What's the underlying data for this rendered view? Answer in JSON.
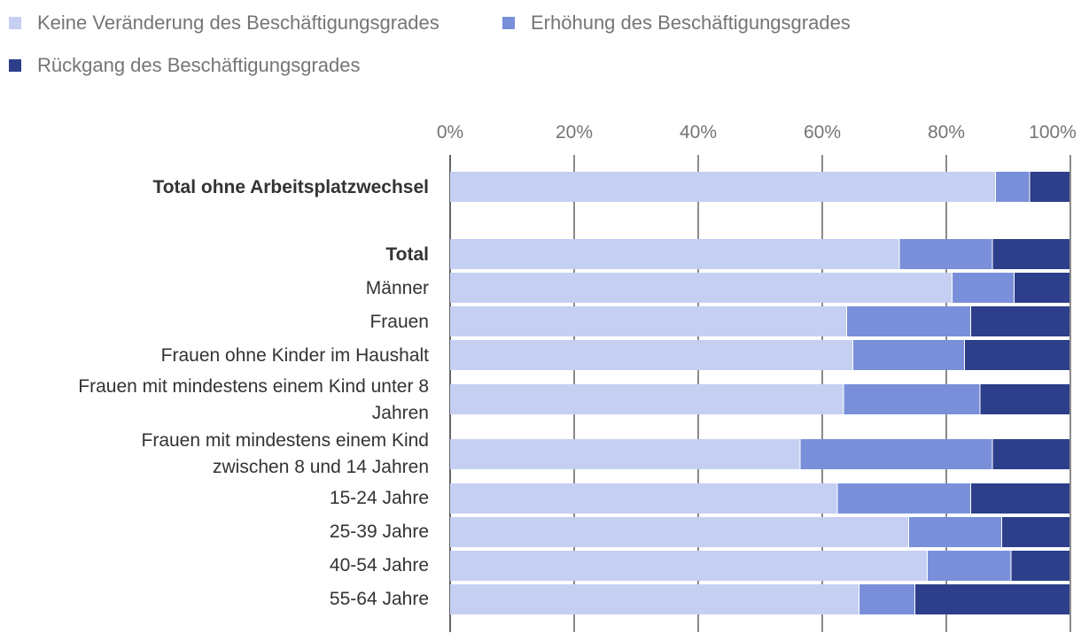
{
  "chart_data": {
    "type": "bar",
    "orientation": "horizontal",
    "stacked": true,
    "title": "",
    "xlabel": "",
    "ylabel": "",
    "xlim": [
      0,
      100
    ],
    "x_ticks": [
      "0%",
      "20%",
      "40%",
      "60%",
      "80%",
      "100%"
    ],
    "legend_position": "top-left",
    "grid": true,
    "series": [
      {
        "name": "Keine Veränderung des Beschäftigungsgrades",
        "color": "#c5cff2",
        "values": [
          88,
          72.5,
          81,
          64,
          65,
          63.5,
          56.5,
          62.5,
          74,
          77,
          66
        ]
      },
      {
        "name": "Erhöhung des Beschäftigungsgrades",
        "color": "#7a8fda",
        "values": [
          5.5,
          15,
          10,
          20,
          18,
          22,
          31,
          21.5,
          15,
          13.5,
          9
        ]
      },
      {
        "name": "Rückgang des Beschäftigungsgrades",
        "color": "#2d3e8a",
        "values": [
          6.5,
          12.5,
          9,
          16,
          17,
          14.5,
          12.5,
          16,
          11,
          9.5,
          25
        ]
      }
    ],
    "categories": [
      {
        "lines": [
          "Total ohne Arbeitsplatzwechsel"
        ],
        "bold": true
      },
      {
        "lines": [
          "Total"
        ],
        "bold": true
      },
      {
        "lines": [
          "Männer"
        ],
        "bold": false
      },
      {
        "lines": [
          "Frauen"
        ],
        "bold": false
      },
      {
        "lines": [
          "Frauen ohne Kinder im Haushalt"
        ],
        "bold": false
      },
      {
        "lines": [
          "Frauen mit mindestens einem Kind unter 8",
          "Jahren"
        ],
        "bold": false
      },
      {
        "lines": [
          "Frauen mit mindestens einem Kind",
          "zwischen 8 und 14 Jahren"
        ],
        "bold": false
      },
      {
        "lines": [
          "15-24 Jahre"
        ],
        "bold": false
      },
      {
        "lines": [
          "25-39 Jahre"
        ],
        "bold": false
      },
      {
        "lines": [
          "40-54 Jahre"
        ],
        "bold": false
      },
      {
        "lines": [
          "55-64 Jahre"
        ],
        "bold": false
      }
    ]
  }
}
